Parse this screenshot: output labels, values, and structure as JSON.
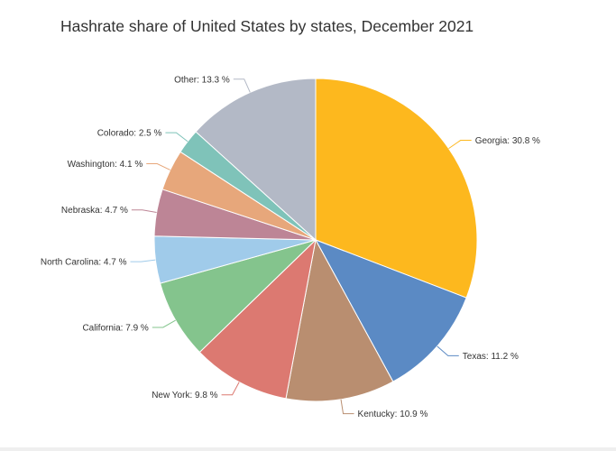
{
  "chart_data": {
    "type": "pie",
    "title": "Hashrate share of United States by states, December 2021",
    "unit": "%",
    "slices": [
      {
        "label": "Georgia",
        "value": 30.8,
        "display": "Georgia: 30.8 %",
        "color": "#fdb81e"
      },
      {
        "label": "Texas",
        "value": 11.2,
        "display": "Texas: 11.2 %",
        "color": "#5b8ac4"
      },
      {
        "label": "Kentucky",
        "value": 10.9,
        "display": "Kentucky: 10.9 %",
        "color": "#b98e70"
      },
      {
        "label": "New York",
        "value": 9.8,
        "display": "New York: 9.8 %",
        "color": "#dc7971"
      },
      {
        "label": "California",
        "value": 7.9,
        "display": "California: 7.9 %",
        "color": "#84c48d"
      },
      {
        "label": "North Carolina",
        "value": 4.7,
        "display": "North Carolina: 4.7 %",
        "color": "#a0cbea"
      },
      {
        "label": "Nebraska",
        "value": 4.7,
        "display": "Nebraska: 4.7 %",
        "color": "#bd8596"
      },
      {
        "label": "Washington",
        "value": 4.1,
        "display": "Washington: 4.1 %",
        "color": "#e7a77b"
      },
      {
        "label": "Colorado",
        "value": 2.5,
        "display": "Colorado: 2.5 %",
        "color": "#7fc3b9"
      },
      {
        "label": "Other",
        "value": 13.3,
        "display": "Other: 13.3 %",
        "color": "#b3b9c6"
      }
    ]
  }
}
